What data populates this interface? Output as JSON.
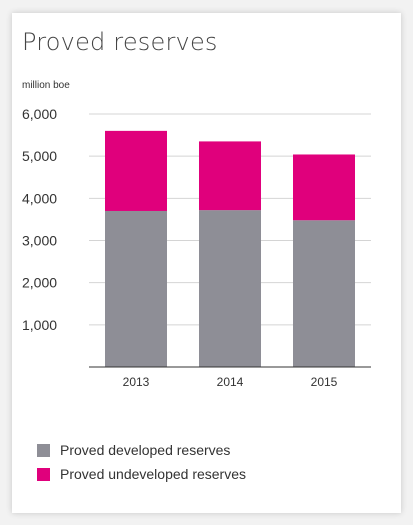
{
  "chart_data": {
    "type": "bar",
    "stacked": true,
    "title": "Proved reserves",
    "unit_label": "million boe",
    "categories": [
      "2013",
      "2014",
      "2015"
    ],
    "series": [
      {
        "name": "Proved developed reserves",
        "values": [
          3700,
          3720,
          3480
        ],
        "color": "#8e8e96"
      },
      {
        "name": "Proved undeveloped reserves",
        "values": [
          1900,
          1630,
          1560
        ],
        "color": "#e0007c"
      }
    ],
    "ylim": [
      0,
      6000
    ],
    "yticks": [
      1000,
      2000,
      3000,
      4000,
      5000,
      6000
    ],
    "ytick_labels": [
      "1,000",
      "2,000",
      "3,000",
      "4,000",
      "5,000",
      "6,000"
    ],
    "grid": true,
    "legend_position": "bottom-left"
  }
}
